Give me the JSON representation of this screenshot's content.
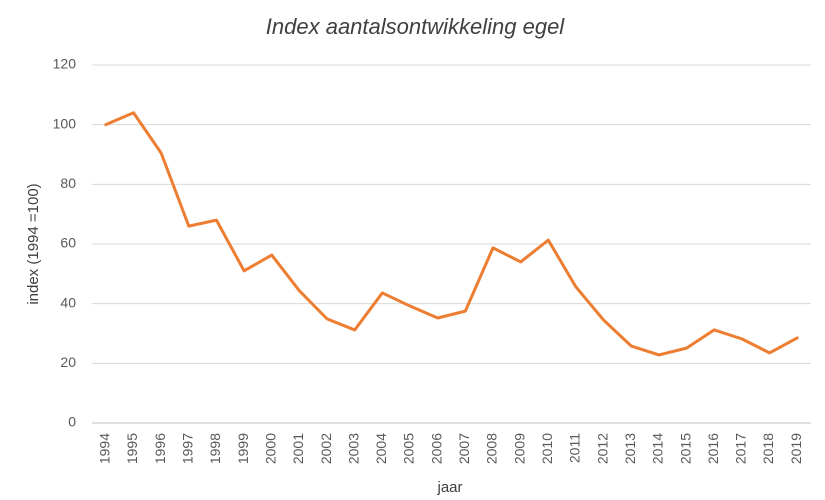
{
  "chart_data": {
    "type": "line",
    "title": "Index aantalsontwikkeling egel",
    "x_label": "jaar",
    "y_label": "index (1994 =100)",
    "categories": [
      "1994",
      "1995",
      "1996",
      "1997",
      "1998",
      "1999",
      "2000",
      "2001",
      "2002",
      "2003",
      "2004",
      "2005",
      "2006",
      "2007",
      "2008",
      "2009",
      "2010",
      "2011",
      "2012",
      "2013",
      "2014",
      "2015",
      "2016",
      "2017",
      "2018",
      "2019"
    ],
    "series": [
      {
        "name": "index",
        "color": "#ed7d31",
        "values": [
          100,
          104,
          90.5,
          66,
          68,
          51,
          56.3,
          44.3,
          34.9,
          31.2,
          43.6,
          39.2,
          35.2,
          37.5,
          58.7,
          54,
          61.3,
          45.6,
          34.5,
          25.8,
          22.8,
          25.1,
          31.2,
          28.2,
          23.5,
          28.5
        ]
      }
    ],
    "ylim": [
      0,
      120
    ],
    "yticks": [
      0,
      20,
      40,
      60,
      80,
      100,
      120
    ],
    "grid": true
  }
}
